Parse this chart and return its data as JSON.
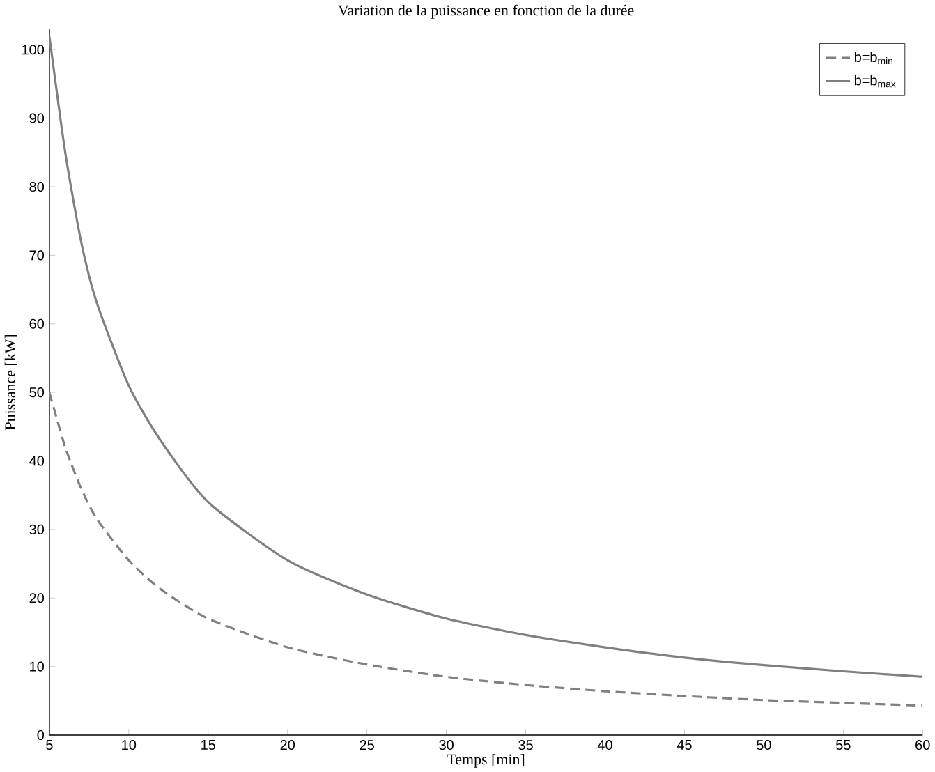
{
  "chart_data": {
    "type": "line",
    "title": "Variation de la puissance en fonction de la durée",
    "xlabel": "Temps [min]",
    "ylabel": "Puissance [kW]",
    "xlim": [
      5,
      60
    ],
    "ylim": [
      0,
      103
    ],
    "xticks": [
      5,
      10,
      15,
      20,
      25,
      30,
      35,
      40,
      45,
      50,
      55,
      60
    ],
    "yticks": [
      0,
      10,
      20,
      30,
      40,
      50,
      60,
      70,
      80,
      90,
      100
    ],
    "grid": false,
    "legend": "top right",
    "marker": "none",
    "x": [
      5,
      6,
      7,
      8,
      10,
      12,
      15,
      20,
      25,
      30,
      35,
      40,
      45,
      50,
      55,
      60
    ],
    "series": [
      {
        "name": "b=b$_{min}$",
        "color": "#808080",
        "line_style": "dashed",
        "values": [
          50,
          42,
          36,
          31.5,
          25.5,
          21.3,
          17,
          12.8,
          10.3,
          8.5,
          7.3,
          6.4,
          5.7,
          5.1,
          4.7,
          4.3
        ]
      },
      {
        "name": "b=b$_{max}$",
        "color": "#808080",
        "line_style": "solid",
        "values": [
          102,
          85,
          72,
          63,
          51,
          43,
          34,
          25.5,
          20.5,
          17,
          14.6,
          12.8,
          11.3,
          10.2,
          9.3,
          8.5
        ]
      }
    ]
  }
}
